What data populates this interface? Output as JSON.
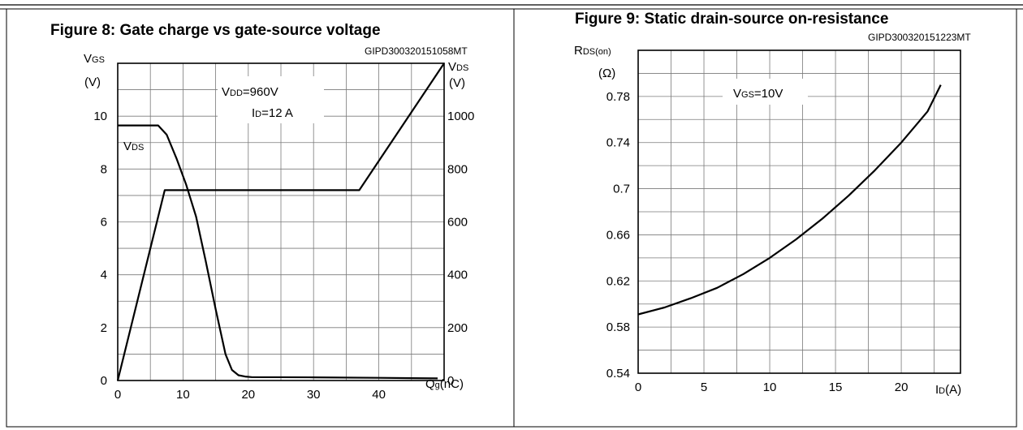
{
  "chart_data": [
    {
      "type": "line",
      "title": "Figure 8: Gate charge vs gate-source voltage",
      "code": "GIPD300320151058MT",
      "xlabel": {
        "main": "Q",
        "sub": "g",
        "unit": "(nC)"
      },
      "ylabel_left": {
        "main": "V",
        "sub": "GS",
        "unit": "(V)"
      },
      "ylabel_right": {
        "main": "V",
        "sub": "DS",
        "unit": "(V)"
      },
      "xlim": [
        0,
        50
      ],
      "ylim_left": [
        0,
        12
      ],
      "ylim_right": [
        0,
        1200
      ],
      "xticks": [
        "0",
        "10",
        "20",
        "30",
        "40"
      ],
      "yticks_left": [
        "0",
        "2",
        "4",
        "6",
        "8",
        "10"
      ],
      "yticks_right": [
        "0",
        "200",
        "400",
        "600",
        "800",
        "1000"
      ],
      "grid": true,
      "annotations": [
        {
          "main": "V",
          "sub": "DD",
          "rest": "=960V"
        },
        {
          "main": "I",
          "sub": "D",
          "rest": "=12 A"
        },
        {
          "main": "V",
          "sub": "DS",
          "rest": ""
        }
      ],
      "series": [
        {
          "axis": "left",
          "x": [
            0,
            7.2,
            37,
            50
          ],
          "y": [
            0,
            7.2,
            7.2,
            12
          ]
        },
        {
          "axis": "right",
          "x": [
            0,
            6.2,
            7.5,
            9,
            10.5,
            12,
            13.5,
            15,
            16.5,
            17.5,
            18.5,
            19.5,
            20.5,
            30,
            40,
            49
          ],
          "y": [
            965,
            965,
            930,
            840,
            740,
            620,
            450,
            270,
            100,
            40,
            20,
            15,
            13,
            12,
            10,
            8
          ]
        }
      ]
    },
    {
      "type": "line",
      "title": "Figure 9: Static drain-source on-resistance",
      "code": "GIPD300320151223MT",
      "xlabel": {
        "main": "I",
        "sub": "D",
        "unit": "(A)"
      },
      "ylabel": {
        "main": "R",
        "sub": "DS(on)",
        "unit": "(Ω)"
      },
      "xlim": [
        0,
        24.5
      ],
      "ylim": [
        0.54,
        0.82
      ],
      "xticks": [
        "0",
        "5",
        "10",
        "15",
        "20"
      ],
      "yticks": [
        "0.54",
        "0.58",
        "0.62",
        "0.66",
        "0.7",
        "0.74",
        "0.78"
      ],
      "grid": true,
      "annotations": [
        {
          "main": "V",
          "sub": "GS",
          "rest": "=10V"
        }
      ],
      "series": [
        {
          "x": [
            0,
            2,
            4,
            6,
            8,
            10,
            12,
            14,
            16,
            18,
            20,
            22,
            23
          ],
          "y": [
            0.591,
            0.597,
            0.605,
            0.614,
            0.626,
            0.64,
            0.656,
            0.674,
            0.694,
            0.716,
            0.74,
            0.767,
            0.79
          ]
        }
      ]
    }
  ]
}
